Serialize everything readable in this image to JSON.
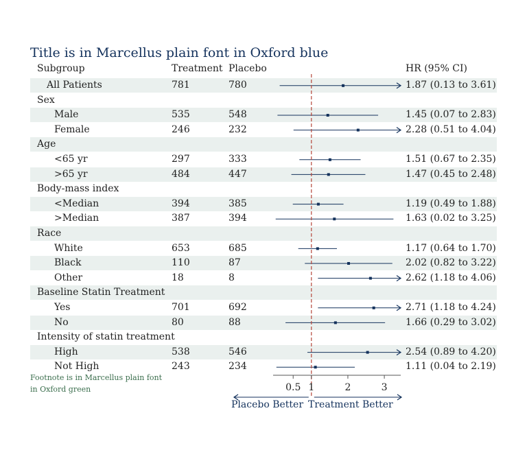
{
  "title": "Title is in Marcellus plain font in Oxford blue",
  "footnote": [
    "Footnote is in Marcellus plain font",
    "in Oxford green"
  ],
  "headers": {
    "subgroup": "Subgroup",
    "treatment": "Treatment",
    "placebo": "Placebo",
    "hr": "HR (95% CI)"
  },
  "direction": {
    "left": "Placebo Better",
    "right": "Treatment Better"
  },
  "colors": {
    "title": "#14325c",
    "footnote": "#3b6e4d",
    "band": "#eaf0ee",
    "ci": "#14325c",
    "refline": "#b5473a"
  },
  "chart_data": {
    "type": "forest",
    "xlim": [
      -0.05,
      3.45
    ],
    "xticks": [
      0.5,
      1,
      2,
      3
    ],
    "xtick_labels": [
      "0.5",
      "1",
      "2",
      "3"
    ],
    "reference_line": 1,
    "rows": [
      {
        "label": "All Patients",
        "level": 1,
        "shaded": true,
        "treatment": "781",
        "placebo": "780",
        "hr": 1.87,
        "lo": 0.13,
        "hi": 3.61,
        "text": "1.87 (0.13 to 3.61)"
      },
      {
        "label": "Sex",
        "level": 0,
        "shaded": false
      },
      {
        "label": "Male",
        "level": 2,
        "shaded": true,
        "treatment": "535",
        "placebo": "548",
        "hr": 1.45,
        "lo": 0.07,
        "hi": 2.83,
        "text": "1.45 (0.07 to 2.83)"
      },
      {
        "label": "Female",
        "level": 2,
        "shaded": false,
        "treatment": "246",
        "placebo": "232",
        "hr": 2.28,
        "lo": 0.51,
        "hi": 4.04,
        "text": "2.28 (0.51 to 4.04)"
      },
      {
        "label": "Age",
        "level": 0,
        "shaded": true
      },
      {
        "label": "<65 yr",
        "level": 2,
        "shaded": false,
        "treatment": "297",
        "placebo": "333",
        "hr": 1.51,
        "lo": 0.67,
        "hi": 2.35,
        "text": "1.51 (0.67 to 2.35)"
      },
      {
        "label": ">65 yr",
        "level": 2,
        "shaded": true,
        "treatment": "484",
        "placebo": "447",
        "hr": 1.47,
        "lo": 0.45,
        "hi": 2.48,
        "text": "1.47 (0.45 to 2.48)"
      },
      {
        "label": "Body-mass index",
        "level": 0,
        "shaded": false
      },
      {
        "label": "<Median",
        "level": 2,
        "shaded": true,
        "treatment": "394",
        "placebo": "385",
        "hr": 1.19,
        "lo": 0.49,
        "hi": 1.88,
        "text": "1.19 (0.49 to 1.88)"
      },
      {
        "label": ">Median",
        "level": 2,
        "shaded": false,
        "treatment": "387",
        "placebo": "394",
        "hr": 1.63,
        "lo": 0.02,
        "hi": 3.25,
        "text": "1.63 (0.02 to 3.25)"
      },
      {
        "label": "Race",
        "level": 0,
        "shaded": true
      },
      {
        "label": "White",
        "level": 2,
        "shaded": false,
        "treatment": "653",
        "placebo": "685",
        "hr": 1.17,
        "lo": 0.64,
        "hi": 1.7,
        "text": "1.17 (0.64 to 1.70)"
      },
      {
        "label": "Black",
        "level": 2,
        "shaded": true,
        "treatment": "110",
        "placebo": "87",
        "hr": 2.02,
        "lo": 0.82,
        "hi": 3.22,
        "text": "2.02 (0.82 to 3.22)"
      },
      {
        "label": "Other",
        "level": 2,
        "shaded": false,
        "treatment": "18",
        "placebo": "8",
        "hr": 2.62,
        "lo": 1.18,
        "hi": 4.06,
        "text": "2.62 (1.18 to 4.06)"
      },
      {
        "label": "Baseline Statin Treatment",
        "level": 0,
        "shaded": true
      },
      {
        "label": "Yes",
        "level": 2,
        "shaded": false,
        "treatment": "701",
        "placebo": "692",
        "hr": 2.71,
        "lo": 1.18,
        "hi": 4.24,
        "text": "2.71 (1.18 to 4.24)"
      },
      {
        "label": "No",
        "level": 2,
        "shaded": true,
        "treatment": "80",
        "placebo": "88",
        "hr": 1.66,
        "lo": 0.29,
        "hi": 3.02,
        "text": "1.66 (0.29 to 3.02)"
      },
      {
        "label": "Intensity of statin treatment",
        "level": 0,
        "shaded": false
      },
      {
        "label": "High",
        "level": 2,
        "shaded": true,
        "treatment": "538",
        "placebo": "546",
        "hr": 2.54,
        "lo": 0.89,
        "hi": 4.2,
        "text": "2.54 (0.89 to 4.20)"
      },
      {
        "label": "Not High",
        "level": 2,
        "shaded": false,
        "treatment": "243",
        "placebo": "234",
        "hr": 1.11,
        "lo": 0.04,
        "hi": 2.19,
        "text": "1.11 (0.04 to 2.19)"
      }
    ]
  }
}
